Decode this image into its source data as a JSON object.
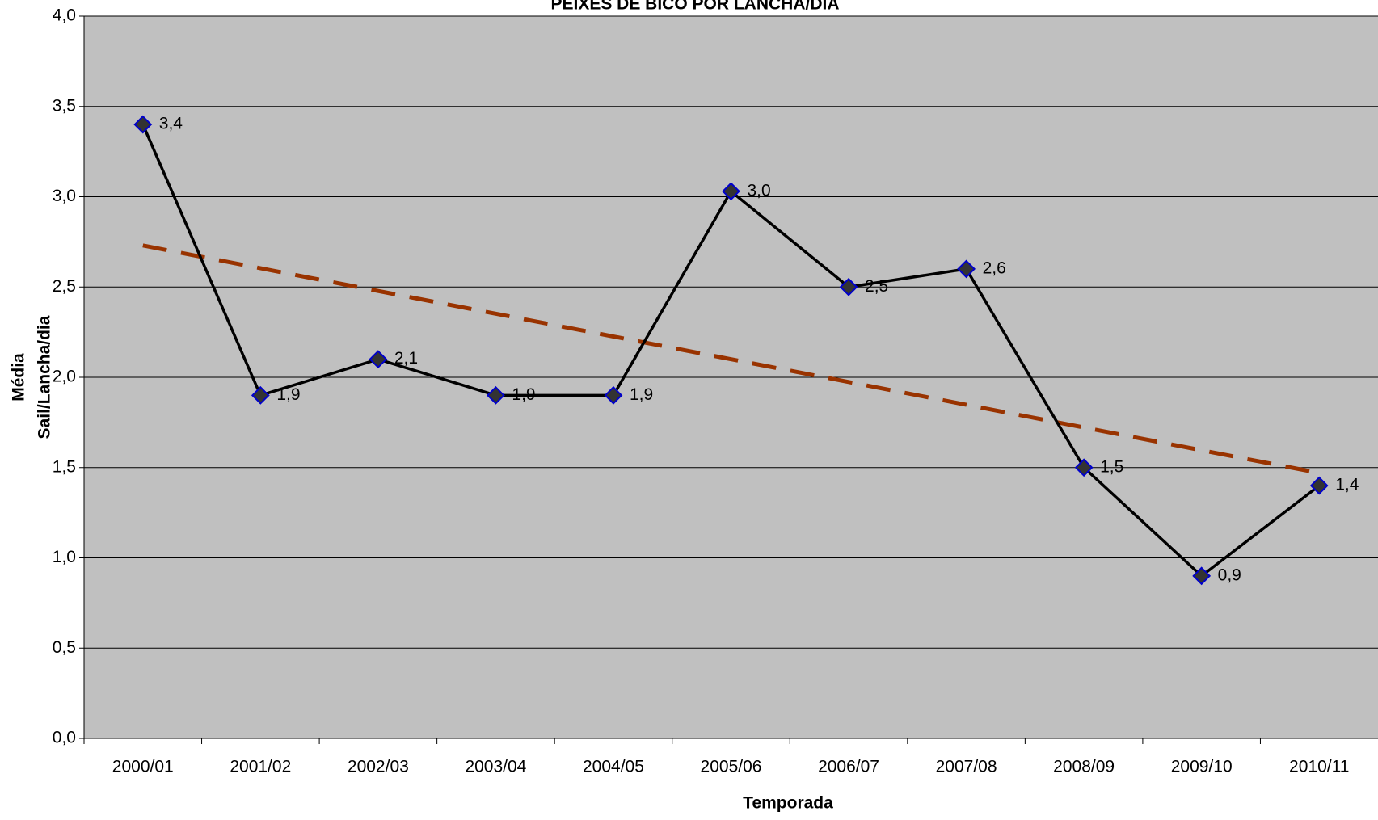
{
  "chart_data": {
    "type": "line",
    "title": "PEIXES DE BICO POR LANCHA/DIA",
    "xlabel": "Temporada",
    "ylabel_lines": [
      "Média",
      "Sail/Lancha/dia"
    ],
    "categories": [
      "2000/01",
      "2001/02",
      "2002/03",
      "2003/04",
      "2004/05",
      "2005/06",
      "2006/07",
      "2007/08",
      "2008/09",
      "2009/10",
      "2010/11"
    ],
    "series": [
      {
        "color": "#000000",
        "marker_fill": "#333333",
        "marker_edge": "#0000cc",
        "values": [
          3.4,
          1.9,
          2.1,
          1.9,
          1.9,
          3.03,
          2.5,
          2.6,
          1.5,
          0.9,
          1.4
        ],
        "value_labels": [
          "3,4",
          "1,9",
          "2,1",
          "1,9",
          "1,9",
          "3,0",
          "2,5",
          "2,6",
          "1,5",
          "0,9",
          "1,4"
        ]
      }
    ],
    "trendline": {
      "start": 2.73,
      "end": 1.47,
      "color": "#993300"
    },
    "ylim": [
      0,
      4
    ],
    "yticks": [
      {
        "value": 0,
        "label": "0,0"
      },
      {
        "value": 0.5,
        "label": "0,5"
      },
      {
        "value": 1,
        "label": "1,0"
      },
      {
        "value": 1.5,
        "label": "1,5"
      },
      {
        "value": 2,
        "label": "2,0"
      },
      {
        "value": 2.5,
        "label": "2,5"
      },
      {
        "value": 3,
        "label": "3,0"
      },
      {
        "value": 3.5,
        "label": "3,5"
      },
      {
        "value": 4,
        "label": "4,0"
      }
    ],
    "grid": true,
    "plot_background": "#c0c0c0"
  }
}
